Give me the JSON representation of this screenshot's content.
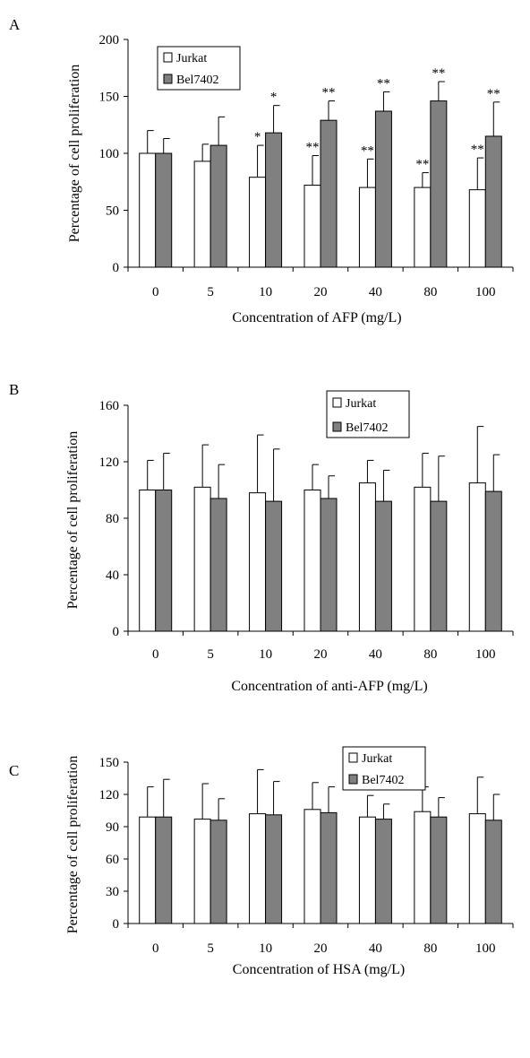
{
  "chart_data": [
    {
      "panel": "A",
      "type": "bar",
      "categories": [
        "0",
        "5",
        "10",
        "20",
        "40",
        "80",
        "100"
      ],
      "xlabel": "Concentration of AFP (mg/L)",
      "ylabel": "Percentage of cell proliferation",
      "ylim": [
        0,
        200
      ],
      "yticks": [
        0,
        50,
        100,
        150,
        200
      ],
      "legend": "top-left",
      "grid": false,
      "series": [
        {
          "name": "Jurkat",
          "color": "#ffffff",
          "values": [
            100,
            93,
            79,
            72,
            70,
            70,
            68
          ],
          "errors": [
            20,
            15,
            28,
            26,
            25,
            13,
            28
          ],
          "annotations": [
            "",
            "",
            "*",
            "**",
            "**",
            "**",
            "**"
          ]
        },
        {
          "name": "Bel7402",
          "color": "#808080",
          "values": [
            100,
            107,
            118,
            129,
            137,
            146,
            115
          ],
          "errors": [
            13,
            25,
            24,
            17,
            17,
            17,
            30
          ],
          "annotations": [
            "",
            "",
            "*",
            "**",
            "**",
            "**",
            "**"
          ]
        }
      ]
    },
    {
      "panel": "B",
      "type": "bar",
      "categories": [
        "0",
        "5",
        "10",
        "20",
        "40",
        "80",
        "100"
      ],
      "xlabel": "Concentration of anti-AFP (mg/L)",
      "ylabel": "Percentage of cell proliferation",
      "ylim": [
        0,
        160
      ],
      "yticks": [
        0,
        40,
        80,
        120,
        160
      ],
      "legend": "top-right",
      "grid": false,
      "series": [
        {
          "name": "Jurkat",
          "color": "#ffffff",
          "values": [
            100,
            102,
            98,
            100,
            105,
            102,
            105
          ],
          "errors": [
            21,
            30,
            41,
            18,
            16,
            24,
            40
          ]
        },
        {
          "name": "Bel7402",
          "color": "#808080",
          "values": [
            100,
            94,
            92,
            94,
            92,
            92,
            99
          ],
          "errors": [
            26,
            24,
            37,
            16,
            22,
            32,
            26
          ]
        }
      ]
    },
    {
      "panel": "C",
      "type": "bar",
      "categories": [
        "0",
        "5",
        "10",
        "20",
        "40",
        "80",
        "100"
      ],
      "xlabel": "Concentration of HSA (mg/L)",
      "ylabel": "Percentage of cell proliferation",
      "ylim": [
        0,
        150
      ],
      "yticks": [
        0,
        30,
        60,
        90,
        120,
        150
      ],
      "legend": "top-right",
      "grid": false,
      "series": [
        {
          "name": "Jurkat",
          "color": "#ffffff",
          "values": [
            99,
            97,
            102,
            106,
            99,
            104,
            102
          ],
          "errors": [
            28,
            33,
            41,
            25,
            20,
            23,
            34
          ]
        },
        {
          "name": "Bel7402",
          "color": "#808080",
          "values": [
            99,
            96,
            101,
            103,
            97,
            99,
            96
          ],
          "errors": [
            35,
            20,
            31,
            24,
            14,
            18,
            24
          ]
        }
      ]
    }
  ]
}
